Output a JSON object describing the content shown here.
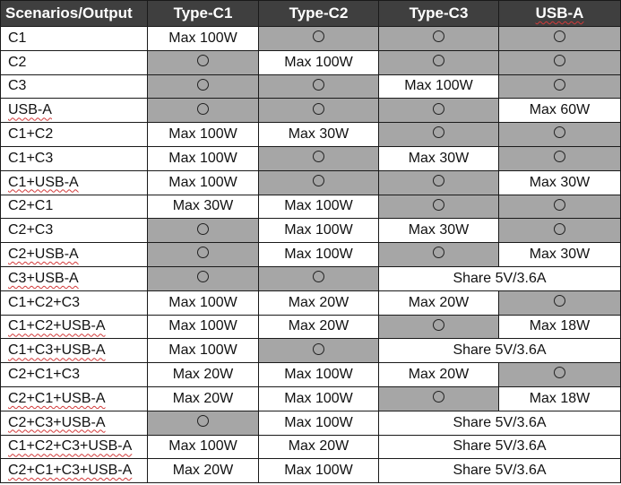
{
  "header": {
    "scenarios": "Scenarios/Output",
    "ports": [
      "Type-C1",
      "Type-C2",
      "Type-C3",
      "USB-A"
    ]
  },
  "symbol": "○",
  "rows": [
    {
      "scenario": "C1",
      "cells": [
        {
          "text": "Max 100W",
          "shaded": false
        },
        {
          "text": "○",
          "shaded": true
        },
        {
          "text": "○",
          "shaded": true
        },
        {
          "text": "○",
          "shaded": true
        }
      ]
    },
    {
      "scenario": "C2",
      "cells": [
        {
          "text": "○",
          "shaded": true
        },
        {
          "text": "Max 100W",
          "shaded": false
        },
        {
          "text": "○",
          "shaded": true
        },
        {
          "text": "○",
          "shaded": true
        }
      ]
    },
    {
      "scenario": "C3",
      "cells": [
        {
          "text": "○",
          "shaded": true
        },
        {
          "text": "○",
          "shaded": true
        },
        {
          "text": "Max 100W",
          "shaded": false
        },
        {
          "text": "○",
          "shaded": true
        }
      ]
    },
    {
      "scenario": "USB-A",
      "cells": [
        {
          "text": "○",
          "shaded": true
        },
        {
          "text": "○",
          "shaded": true
        },
        {
          "text": "○",
          "shaded": true
        },
        {
          "text": "Max 60W",
          "shaded": false
        }
      ]
    },
    {
      "scenario": "C1+C2",
      "cells": [
        {
          "text": "Max 100W",
          "shaded": false
        },
        {
          "text": "Max 30W",
          "shaded": false
        },
        {
          "text": "○",
          "shaded": true
        },
        {
          "text": "○",
          "shaded": true
        }
      ]
    },
    {
      "scenario": "C1+C3",
      "cells": [
        {
          "text": "Max 100W",
          "shaded": false
        },
        {
          "text": "○",
          "shaded": true
        },
        {
          "text": "Max 30W",
          "shaded": false
        },
        {
          "text": "○",
          "shaded": true
        }
      ]
    },
    {
      "scenario": "C1+USB-A",
      "cells": [
        {
          "text": "Max 100W",
          "shaded": false
        },
        {
          "text": "○",
          "shaded": true
        },
        {
          "text": "○",
          "shaded": true
        },
        {
          "text": "Max 30W",
          "shaded": false
        }
      ]
    },
    {
      "scenario": "C2+C1",
      "cells": [
        {
          "text": "Max 30W",
          "shaded": false
        },
        {
          "text": "Max 100W",
          "shaded": false
        },
        {
          "text": "○",
          "shaded": true
        },
        {
          "text": "○",
          "shaded": true
        }
      ]
    },
    {
      "scenario": "C2+C3",
      "cells": [
        {
          "text": "○",
          "shaded": true
        },
        {
          "text": "Max 100W",
          "shaded": false
        },
        {
          "text": "Max 30W",
          "shaded": false
        },
        {
          "text": "○",
          "shaded": true
        }
      ]
    },
    {
      "scenario": "C2+USB-A",
      "cells": [
        {
          "text": "○",
          "shaded": true
        },
        {
          "text": "Max 100W",
          "shaded": false
        },
        {
          "text": "○",
          "shaded": true
        },
        {
          "text": "Max 30W",
          "shaded": false
        }
      ]
    },
    {
      "scenario": "C3+USB-A",
      "cells": [
        {
          "text": "○",
          "shaded": true
        },
        {
          "text": "○",
          "shaded": true
        },
        {
          "text": "Share 5V/3.6A",
          "shaded": false,
          "span": 2
        }
      ]
    },
    {
      "scenario": "C1+C2+C3",
      "cells": [
        {
          "text": "Max 100W",
          "shaded": false
        },
        {
          "text": "Max 20W",
          "shaded": false
        },
        {
          "text": "Max 20W",
          "shaded": false
        },
        {
          "text": "○",
          "shaded": true
        }
      ]
    },
    {
      "scenario": "C1+C2+USB-A",
      "cells": [
        {
          "text": "Max 100W",
          "shaded": false
        },
        {
          "text": "Max 20W",
          "shaded": false
        },
        {
          "text": "○",
          "shaded": true
        },
        {
          "text": "Max 18W",
          "shaded": false
        }
      ]
    },
    {
      "scenario": "C1+C3+USB-A",
      "cells": [
        {
          "text": "Max 100W",
          "shaded": false
        },
        {
          "text": "○",
          "shaded": true
        },
        {
          "text": "Share 5V/3.6A",
          "shaded": false,
          "span": 2
        }
      ]
    },
    {
      "scenario": "C2+C1+C3",
      "cells": [
        {
          "text": "Max 20W",
          "shaded": false
        },
        {
          "text": "Max 100W",
          "shaded": false
        },
        {
          "text": "Max 20W",
          "shaded": false
        },
        {
          "text": "○",
          "shaded": true
        }
      ]
    },
    {
      "scenario": "C2+C1+USB-A",
      "cells": [
        {
          "text": "Max 20W",
          "shaded": false
        },
        {
          "text": "Max 100W",
          "shaded": false
        },
        {
          "text": "○",
          "shaded": true
        },
        {
          "text": "Max 18W",
          "shaded": false
        }
      ]
    },
    {
      "scenario": "C2+C3+USB-A",
      "cells": [
        {
          "text": "○",
          "shaded": true
        },
        {
          "text": "Max 100W",
          "shaded": false
        },
        {
          "text": "Share 5V/3.6A",
          "shaded": false,
          "span": 2
        }
      ]
    },
    {
      "scenario": "C1+C2+C3+USB-A",
      "cells": [
        {
          "text": "Max 100W",
          "shaded": false
        },
        {
          "text": "Max 20W",
          "shaded": false
        },
        {
          "text": "Share 5V/3.6A",
          "shaded": false,
          "span": 2
        }
      ]
    },
    {
      "scenario": "C2+C1+C3+USB-A",
      "cells": [
        {
          "text": "Max 20W",
          "shaded": false
        },
        {
          "text": "Max 100W",
          "shaded": false
        },
        {
          "text": "Share 5V/3.6A",
          "shaded": false,
          "span": 2
        }
      ]
    }
  ],
  "colors": {
    "header_bg": "#3f3f3f",
    "header_text": "#ffffff",
    "shaded_cell": "#a6a6a6",
    "cell_bg": "#ffffff",
    "border": "#1a1a1a",
    "spellcheck_underline": "#d23a3a"
  }
}
